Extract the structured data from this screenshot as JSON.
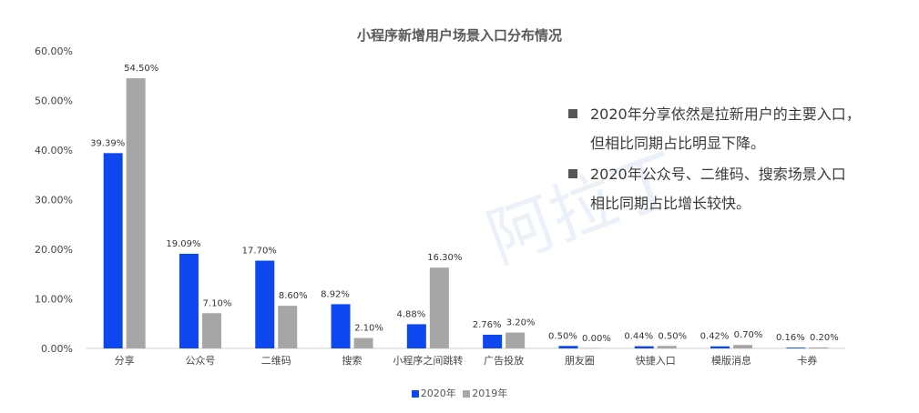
{
  "chart_data": {
    "type": "bar",
    "title": "小程序新增用户场景入口分布情况",
    "categories": [
      "分享",
      "公众号",
      "二维码",
      "搜索",
      "小程序之间跳转",
      "广告投放",
      "朋友圈",
      "快捷入口",
      "模版消息",
      "卡券"
    ],
    "series": [
      {
        "name": "2020年",
        "color": "#0d47f0",
        "values": [
          39.39,
          19.09,
          17.7,
          8.92,
          4.88,
          2.76,
          0.5,
          0.44,
          0.42,
          0.16
        ],
        "labels": [
          "39.39%",
          "19.09%",
          "17.70%",
          "8.92%",
          "4.88%",
          "2.76%",
          "0.50%",
          "0.44%",
          "0.42%",
          "0.16%"
        ]
      },
      {
        "name": "2019年",
        "color": "#a6a6a6",
        "values": [
          54.5,
          7.1,
          8.6,
          2.1,
          16.3,
          3.2,
          0.0,
          0.5,
          0.7,
          0.2
        ],
        "labels": [
          "54.50%",
          "7.10%",
          "8.60%",
          "2.10%",
          "16.30%",
          "3.20%",
          "0.00%",
          "0.50%",
          "0.70%",
          "0.20%"
        ]
      }
    ],
    "ylim": [
      0,
      60
    ],
    "yticks": [
      "0.00%",
      "10.00%",
      "20.00%",
      "30.00%",
      "40.00%",
      "50.00%",
      "60.00%"
    ],
    "grid": false,
    "legend": "bottom-center",
    "notes": [
      "2020年分享依然是拉新用户的主要入口，\n但相比同期占比明显下降。",
      "2020年公众号、二维码、搜索场景入口\n相比同期占比增长较快。"
    ]
  },
  "watermark": "阿拉丁"
}
